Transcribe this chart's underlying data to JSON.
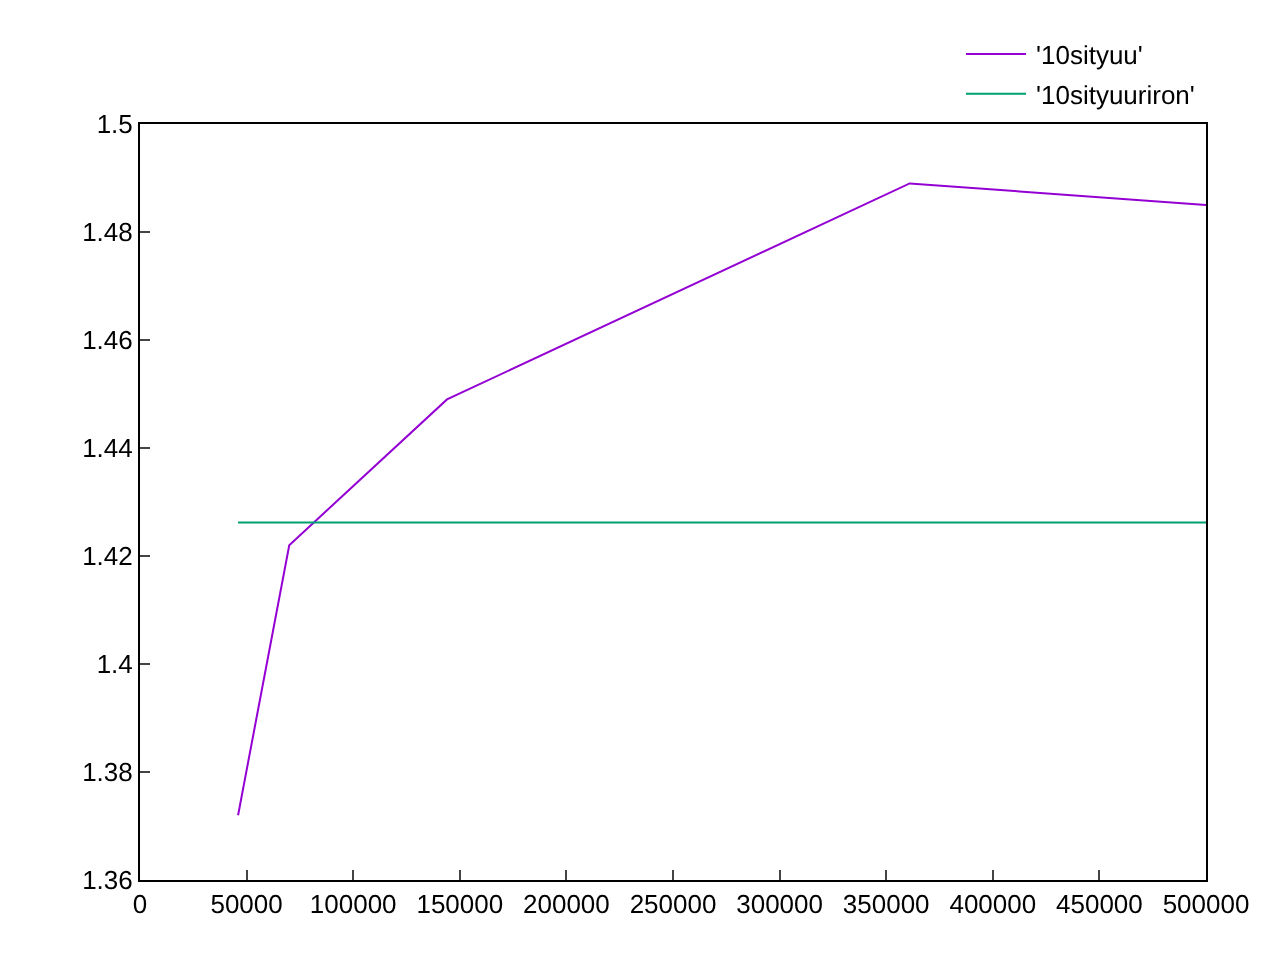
{
  "chart_data": {
    "type": "line",
    "xlim": [
      0,
      500000
    ],
    "xticks": [
      0,
      50000,
      100000,
      150000,
      200000,
      250000,
      300000,
      350000,
      400000,
      450000,
      500000
    ],
    "ylim": [
      1.36,
      1.5
    ],
    "yticks": [
      1.36,
      1.38,
      1.4,
      1.42,
      1.44,
      1.46,
      1.48,
      1.5
    ],
    "legend": "top right",
    "marker": "none",
    "line_style": "solid",
    "series": [
      {
        "name": "'10sityuu'",
        "color": "#9400d3",
        "x": [
          46000,
          70000,
          144000,
          361000,
          500000
        ],
        "values": [
          1.372,
          1.422,
          1.449,
          1.489,
          1.485
        ]
      },
      {
        "name": "'10sityuuriron'",
        "color": "#009e73",
        "x": [
          46000,
          500000
        ],
        "values": [
          1.4262,
          1.4262
        ]
      }
    ]
  }
}
